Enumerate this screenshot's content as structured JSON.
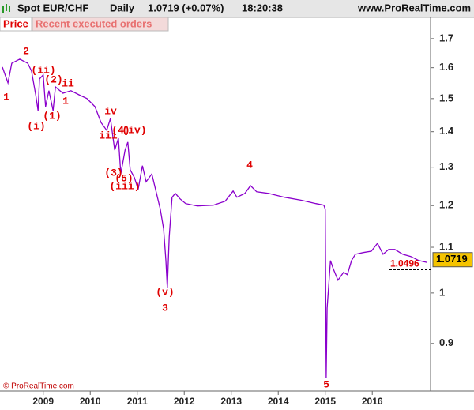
{
  "header": {
    "symbol": "Spot EUR/CHF",
    "period": "Daily",
    "quote": "1.0719 (+0.07%)",
    "time": "18:20:38",
    "site": "www.ProRealTime.com"
  },
  "tabs": [
    "Price",
    "Recent executed orders"
  ],
  "footer": "© ProRealTime.com",
  "chart_data": {
    "type": "line",
    "color": "#8a00cc",
    "log_scale": true,
    "x": [
      2008.13,
      2008.25,
      2008.33,
      2008.5,
      2008.67,
      2008.75,
      2008.84,
      2008.89,
      2008.92,
      2009.0,
      2009.05,
      2009.12,
      2009.21,
      2009.26,
      2009.42,
      2009.59,
      2009.76,
      2009.93,
      2010.1,
      2010.23,
      2010.35,
      2010.43,
      2010.52,
      2010.6,
      2010.65,
      2010.74,
      2010.8,
      2010.85,
      2010.94,
      2011.02,
      2011.11,
      2011.19,
      2011.31,
      2011.41,
      2011.49,
      2011.56,
      2011.61,
      2011.64,
      2011.68,
      2011.74,
      2011.81,
      2011.91,
      2012.03,
      2012.28,
      2012.62,
      2012.87,
      2013.04,
      2013.12,
      2013.29,
      2013.41,
      2013.54,
      2013.79,
      2014.13,
      2014.47,
      2014.8,
      2014.97,
      2015.0,
      2015.02,
      2015.04,
      2015.11,
      2015.17,
      2015.27,
      2015.39,
      2015.47,
      2015.56,
      2015.64,
      2015.81,
      2015.98,
      2016.11,
      2016.23,
      2016.35,
      2016.48,
      2016.65,
      2016.82,
      2016.99,
      2017.16
    ],
    "values": [
      1.602,
      1.55,
      1.615,
      1.629,
      1.615,
      1.589,
      1.512,
      1.463,
      1.563,
      1.576,
      1.475,
      1.525,
      1.463,
      1.537,
      1.517,
      1.525,
      1.512,
      1.5,
      1.475,
      1.427,
      1.404,
      1.439,
      1.347,
      1.381,
      1.282,
      1.347,
      1.37,
      1.293,
      1.272,
      1.241,
      1.304,
      1.261,
      1.282,
      1.231,
      1.191,
      1.143,
      1.07,
      1.01,
      1.124,
      1.221,
      1.231,
      1.217,
      1.205,
      1.199,
      1.201,
      1.211,
      1.237,
      1.221,
      1.231,
      1.251,
      1.235,
      1.231,
      1.221,
      1.214,
      1.205,
      1.201,
      1.191,
      0.838,
      0.969,
      1.07,
      1.052,
      1.027,
      1.044,
      1.039,
      1.07,
      1.084,
      1.088,
      1.091,
      1.109,
      1.084,
      1.095,
      1.095,
      1.084,
      1.079,
      1.07,
      1.066
    ],
    "xlim": [
      2008.08,
      2017.24
    ],
    "xticks": [
      2009,
      2010,
      2011,
      2012,
      2013,
      2014,
      2015,
      2016
    ],
    "ylim": [
      0.815,
      1.777
    ],
    "yticks": [
      0.9,
      1,
      1.1,
      1.2,
      1.3,
      1.4,
      1.5,
      1.6,
      1.7
    ],
    "last_price": 1.0719,
    "reference_line": 1.0496,
    "annotations": [
      "1",
      "2",
      "(ii)",
      "(i)",
      "(2)",
      "ii",
      "(1)",
      "1",
      "iv",
      "iii",
      "(4)",
      "(iv)",
      "(3)",
      "(5)",
      "(iii)",
      "4",
      "(v)",
      "3",
      "5"
    ]
  }
}
